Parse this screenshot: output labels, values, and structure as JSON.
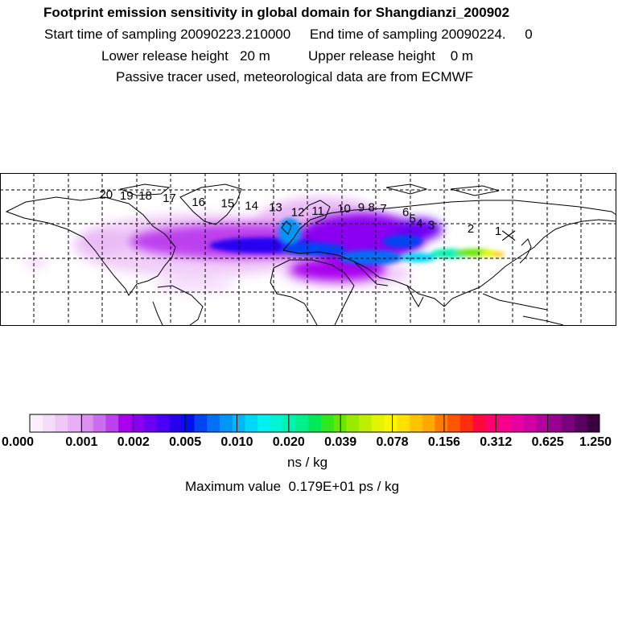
{
  "header": {
    "title": "Footprint emission sensitivity in global domain for Shangdianzi_200902",
    "sampling_line": "Start time of sampling 20090223.210000     End time of sampling 20090224.     0",
    "release_line": "Lower release height   20 m          Upper release height    0 m",
    "tracer_line": "Passive tracer used, meteorological data are from ECMWF"
  },
  "map": {
    "projection": "lat-lon",
    "lon_range": [
      -180,
      180
    ],
    "lat_range": [
      -30,
      90
    ],
    "grid_lines": true,
    "receptor": {
      "lon": 117.1,
      "lat": 40.6,
      "marker": "x"
    },
    "trajectory_labels": [
      {
        "text": "1",
        "lon": 109,
        "lat": 41
      },
      {
        "text": "2",
        "lon": 93,
        "lat": 43
      },
      {
        "text": "3",
        "lon": 70,
        "lat": 46
      },
      {
        "text": "4",
        "lon": 63,
        "lat": 47
      },
      {
        "text": "5",
        "lon": 59,
        "lat": 51
      },
      {
        "text": "6",
        "lon": 55,
        "lat": 56
      },
      {
        "text": "7",
        "lon": 42,
        "lat": 59
      },
      {
        "text": "8",
        "lon": 35,
        "lat": 60
      },
      {
        "text": "9",
        "lon": 29,
        "lat": 60
      },
      {
        "text": "10",
        "lon": 17,
        "lat": 59
      },
      {
        "text": "11",
        "lon": 2,
        "lat": 57
      },
      {
        "text": "12",
        "lon": -10,
        "lat": 56
      },
      {
        "text": "13",
        "lon": -23,
        "lat": 60
      },
      {
        "text": "14",
        "lon": -37,
        "lat": 61
      },
      {
        "text": "15",
        "lon": -51,
        "lat": 63
      },
      {
        "text": "16",
        "lon": -68,
        "lat": 64
      },
      {
        "text": "17",
        "lon": -85,
        "lat": 67
      },
      {
        "text": "18",
        "lon": -99,
        "lat": 69
      },
      {
        "text": "19",
        "lon": -110,
        "lat": 69
      },
      {
        "text": "20",
        "lon": -122,
        "lat": 70
      }
    ]
  },
  "colorbar": {
    "colors": [
      "#fbeffd",
      "#f6dcfb",
      "#f0c8f8",
      "#e7b0f4",
      "#da92ef",
      "#cc6cee",
      "#bd40ee",
      "#a900ee",
      "#8c00f2",
      "#6b00f2",
      "#4a00f4",
      "#2800f0",
      "#0010ef",
      "#0044f2",
      "#0070f4",
      "#0096f6",
      "#00b8f8",
      "#00d8f8",
      "#00f2f0",
      "#00f4d2",
      "#00f2b0",
      "#00f08a",
      "#00ea58",
      "#30e81c",
      "#68e600",
      "#98ea00",
      "#c0ee00",
      "#e2f400",
      "#fbf600",
      "#ffe000",
      "#ffc400",
      "#ffa800",
      "#ff7c00",
      "#ff5400",
      "#ff2c10",
      "#ff0840",
      "#ff0070",
      "#f8008e",
      "#e600a2",
      "#d000a4",
      "#b4009c",
      "#980090",
      "#7a007c",
      "#5a0060",
      "#3c0040"
    ],
    "tick_labels": [
      "0.000",
      "0.001",
      "0.002",
      "0.005",
      "0.010",
      "0.020",
      "0.039",
      "0.078",
      "0.156",
      "0.312",
      "0.625",
      "1.250"
    ],
    "unit": "ns / kg"
  },
  "footer": {
    "max_value": "Maximum value  0.179E+01 ps / kg"
  }
}
